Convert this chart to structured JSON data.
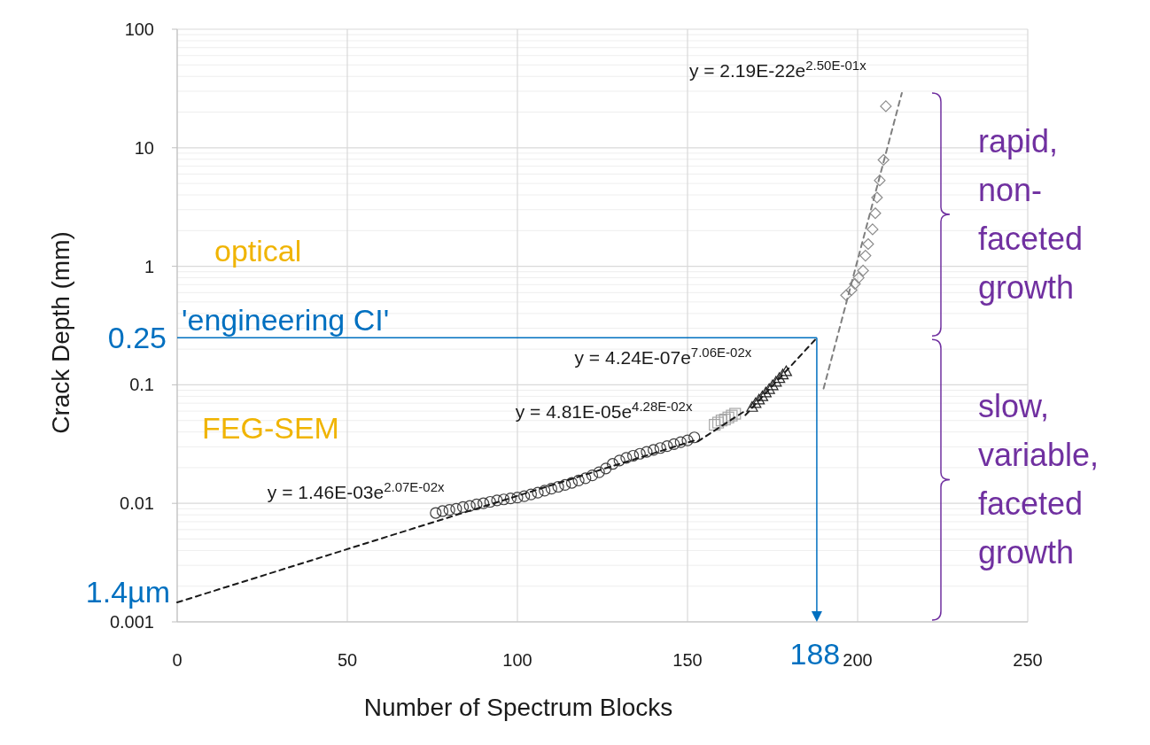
{
  "chart_data": {
    "type": "scatter",
    "xlabel": "Number of Spectrum Blocks",
    "ylabel": "Crack Depth (mm)",
    "log": "y",
    "grid": true,
    "xlim": [
      0,
      250
    ],
    "xticks": [
      0,
      50,
      100,
      150,
      200,
      250
    ],
    "ylim": [
      0.001,
      100
    ],
    "yticks": [
      0.001,
      0.01,
      0.1,
      1,
      10,
      100
    ],
    "series": [
      {
        "marker": "circle",
        "color": "#404040",
        "x": [
          76,
          78,
          80,
          82,
          84,
          86,
          88,
          90,
          92,
          94,
          96,
          98,
          100,
          102,
          104,
          106,
          108,
          110,
          112,
          114,
          116,
          118,
          120,
          122,
          124,
          126,
          128,
          130,
          132,
          134,
          136,
          138,
          140,
          142,
          144,
          146,
          148,
          150,
          152
        ],
        "values": [
          0.0083,
          0.0086,
          0.0088,
          0.009,
          0.0093,
          0.0095,
          0.0098,
          0.01,
          0.0103,
          0.0106,
          0.0108,
          0.011,
          0.0112,
          0.0115,
          0.0119,
          0.0123,
          0.0128,
          0.0133,
          0.0138,
          0.0143,
          0.0149,
          0.0156,
          0.0163,
          0.0172,
          0.0183,
          0.0197,
          0.0215,
          0.023,
          0.0242,
          0.0252,
          0.0262,
          0.0272,
          0.0282,
          0.0293,
          0.0304,
          0.0316,
          0.0328,
          0.034,
          0.036
        ]
      },
      {
        "marker": "square",
        "color": "#a6a6a6",
        "x": [
          158,
          159,
          160,
          161,
          162,
          163,
          164
        ],
        "values": [
          0.046,
          0.048,
          0.05,
          0.051,
          0.053,
          0.055,
          0.057
        ]
      },
      {
        "marker": "triangle",
        "color": "#262626",
        "x": [
          169,
          170,
          171,
          172,
          173,
          174,
          175,
          176,
          177,
          178,
          179
        ],
        "values": [
          0.065,
          0.07,
          0.075,
          0.08,
          0.086,
          0.092,
          0.099,
          0.106,
          0.114,
          0.122,
          0.13
        ]
      },
      {
        "marker": "diamond",
        "color": "#8c8c8c",
        "x": [
          196.6,
          198.2,
          199.2,
          200.3,
          201.6,
          202.3,
          203.1,
          204.4,
          205.2,
          205.7,
          206.5,
          207.6,
          208.3
        ],
        "values": [
          0.57,
          0.63,
          0.71,
          0.8,
          0.92,
          1.23,
          1.54,
          2.05,
          2.8,
          3.8,
          5.3,
          7.9,
          22.4
        ]
      },
      {
        "type": "line",
        "line_style": "dashed",
        "marker": "none",
        "color": "#1a1a1a",
        "x": [
          0,
          152
        ],
        "values": [
          0.00146,
          0.0339
        ]
      },
      {
        "type": "line",
        "line_style": "dashed",
        "marker": "none",
        "color": "#1a1a1a",
        "x": [
          153,
          167
        ],
        "values": [
          0.0333,
          0.0605
        ]
      },
      {
        "type": "line",
        "line_style": "dashed",
        "marker": "none",
        "color": "#1a1a1a",
        "x": [
          167,
          187.5
        ],
        "values": [
          0.0555,
          0.24
        ]
      },
      {
        "type": "line",
        "line_style": "dashed",
        "marker": "none",
        "color": "#7f7f7f",
        "x": [
          190,
          213
        ],
        "values": [
          0.093,
          29
        ]
      }
    ],
    "ref_lines": [
      {
        "axis": "y",
        "value": 0.25,
        "label": "0.25",
        "color": "#0070c0"
      },
      {
        "axis": "x",
        "value": 188,
        "label": "188",
        "color": "#0070c0"
      }
    ],
    "annotations": [
      {
        "text": "y = 1.46E-03e$^{2.07E-02x}$",
        "x": 76,
        "y": 0.0083
      },
      {
        "text": "y = 4.81E-05e$^{4.28E-02x}$",
        "x": 158,
        "y": 0.046
      },
      {
        "text": "y = 4.24E-07e$^{7.06E-02x}$",
        "x": 178,
        "y": 0.122
      },
      {
        "text": "y = 2.19E-22e$^{2.50E-01x}$",
        "x": 213,
        "y": 29
      },
      {
        "text": "1.4µm",
        "x": 0,
        "y": 0.0014
      },
      "'engineering CI'",
      "optical",
      "FEG-SEM",
      "rapid, non-faceted growth",
      "slow, variable, faceted growth"
    ]
  }
}
